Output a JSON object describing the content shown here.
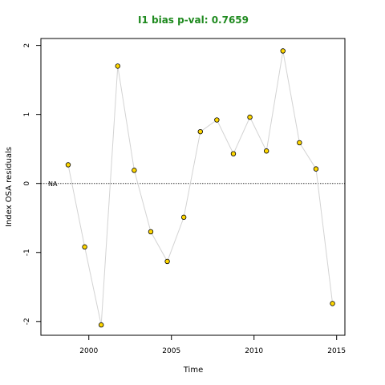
{
  "chart_data": {
    "type": "line",
    "title": "I1 bias p-val: 0.7659",
    "xlabel": "Time",
    "ylabel": "Index OSA residuals",
    "xlim": [
      1997.1,
      2015.5
    ],
    "ylim": [
      -2.2,
      2.1
    ],
    "x_ticks": [
      2000,
      2005,
      2010,
      2015
    ],
    "y_ticks": [
      -2,
      -1,
      0,
      1,
      2
    ],
    "grid": false,
    "reference_line": {
      "y": 0,
      "style": "dotted",
      "label": "NA"
    },
    "series": [
      {
        "line_color": "#d3d3d3",
        "marker_fill": "#ffd700",
        "marker_edge": "#000000",
        "x": [
          1998.75,
          1999.75,
          2000.75,
          2001.75,
          2002.75,
          2003.75,
          2004.75,
          2005.75,
          2006.75,
          2007.75,
          2008.75,
          2009.75,
          2010.75,
          2011.75,
          2012.75,
          2013.75,
          2014.75
        ],
        "y": [
          0.27,
          -0.92,
          -2.05,
          1.7,
          0.19,
          -0.7,
          -1.13,
          -0.49,
          0.75,
          0.92,
          0.43,
          0.96,
          0.47,
          1.92,
          0.59,
          0.21,
          -1.74
        ]
      }
    ]
  }
}
